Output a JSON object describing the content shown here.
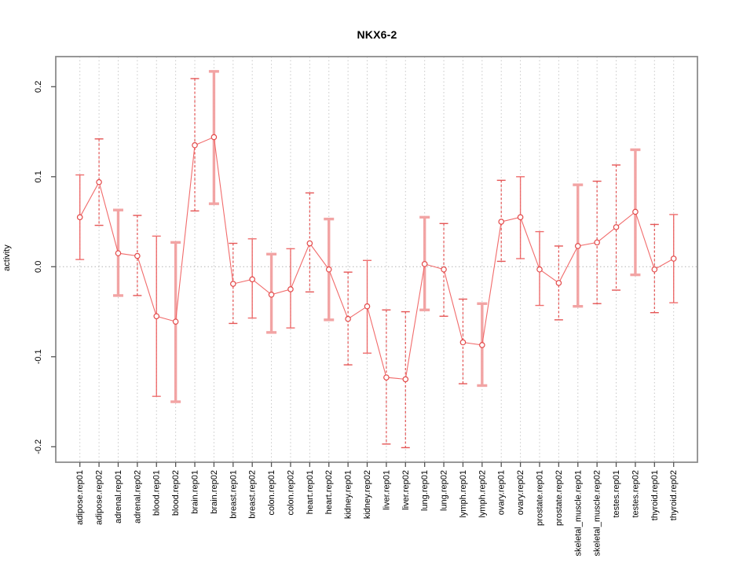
{
  "title": "NKX6-2",
  "chart_data": {
    "type": "line",
    "subtype": "points-with-error-bars",
    "title": "NKX6-2",
    "xlabel": "",
    "ylabel": "activity",
    "ylim": [
      -0.21,
      0.225
    ],
    "yticks": [
      0.2,
      0.1,
      0.0,
      -0.1,
      -0.2
    ],
    "ytick_labels": [
      "0.2",
      "0.1",
      "0.0",
      "-0.1",
      "-0.2"
    ],
    "grid": "dotted vertical gridline per category; dotted horizontal line at y=0",
    "legend_position": "none",
    "marker": "open-circle",
    "categories": [
      "adipose.rep01",
      "adipose.rep02",
      "adrenal.rep01",
      "adrenal.rep02",
      "blood.rep01",
      "blood.rep02",
      "brain.rep01",
      "brain.rep02",
      "breast.rep01",
      "breast.rep02",
      "colon.rep01",
      "colon.rep02",
      "heart.rep01",
      "heart.rep02",
      "kidney.rep01",
      "kidney.rep02",
      "liver.rep01",
      "liver.rep02",
      "lung.rep01",
      "lung.rep02",
      "lymph.rep01",
      "lymph.rep02",
      "ovary.rep01",
      "ovary.rep02",
      "prostate.rep01",
      "prostate.rep02",
      "skeletal_muscle.rep01",
      "skeletal_muscle.rep02",
      "testes.rep01",
      "testes.rep02",
      "thyroid.rep01",
      "thyroid.rep02"
    ],
    "series": [
      {
        "name": "activity",
        "values": [
          0.055,
          0.094,
          0.015,
          0.012,
          -0.055,
          -0.061,
          0.135,
          0.144,
          -0.019,
          -0.014,
          -0.031,
          -0.025,
          0.026,
          -0.003,
          -0.058,
          -0.044,
          -0.123,
          -0.125,
          0.003,
          -0.003,
          -0.084,
          -0.087,
          0.05,
          0.055,
          -0.003,
          -0.018,
          0.023,
          0.027,
          0.044,
          0.061,
          -0.003,
          0.009
        ]
      },
      {
        "name": "ci_low",
        "values": [
          0.008,
          0.046,
          -0.032,
          -0.032,
          -0.144,
          -0.15,
          0.062,
          0.07,
          -0.063,
          -0.057,
          -0.073,
          -0.068,
          -0.028,
          -0.059,
          -0.109,
          -0.096,
          -0.197,
          -0.201,
          -0.048,
          -0.055,
          -0.13,
          -0.132,
          0.006,
          0.009,
          -0.043,
          -0.059,
          -0.044,
          -0.041,
          -0.026,
          -0.009,
          -0.051,
          -0.04
        ]
      },
      {
        "name": "ci_high",
        "values": [
          0.102,
          0.142,
          0.063,
          0.057,
          0.034,
          0.027,
          0.209,
          0.217,
          0.026,
          0.031,
          0.014,
          0.02,
          0.082,
          0.053,
          -0.006,
          0.007,
          -0.048,
          -0.05,
          0.055,
          0.048,
          -0.036,
          -0.041,
          0.096,
          0.1,
          0.039,
          0.023,
          0.091,
          0.095,
          0.113,
          0.13,
          0.047,
          0.058
        ]
      }
    ],
    "error_bar_styles": [
      "solid",
      "dashed",
      "thick",
      "dashed",
      "solid",
      "thick",
      "dashed",
      "thick",
      "dashed",
      "solid",
      "thick",
      "solid",
      "dashed",
      "thick",
      "dashed",
      "solid",
      "dashed",
      "dashed",
      "thick",
      "dashed",
      "dashed",
      "thick",
      "dashed",
      "solid",
      "solid",
      "dashed",
      "thick",
      "dashed",
      "dashed",
      "thick",
      "dashed",
      "solid"
    ]
  },
  "colors": {
    "point_stroke": "#e34a4a",
    "line": "#ef5b5b",
    "errorbar_solid": "#ec5555",
    "errorbar_dashed": "#e34444",
    "errorbar_thick": "#f2a0a0",
    "frame": "#8c8c8c",
    "tick": "#555555",
    "gridline": "#c8c8c8",
    "zero_line": "#b4b4b4",
    "text": "#000000"
  }
}
